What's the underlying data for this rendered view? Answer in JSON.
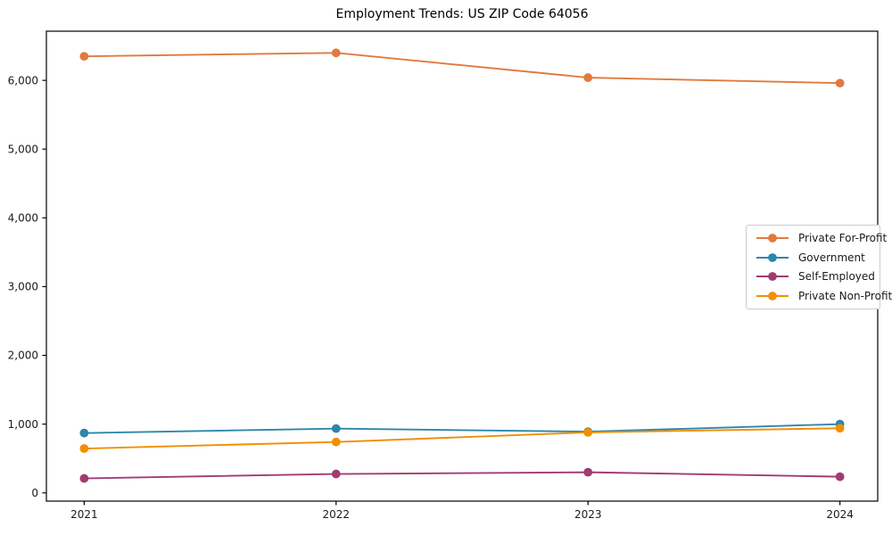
{
  "chart_data": {
    "type": "line",
    "title": "Employment Trends: US ZIP Code 64056",
    "xlabel": "",
    "ylabel": "",
    "x": [
      2021,
      2022,
      2023,
      2024
    ],
    "x_tick_labels": [
      "2021",
      "2022",
      "2023",
      "2024"
    ],
    "series": [
      {
        "name": "Private For-Profit",
        "color": "#E2793E",
        "values": [
          6350,
          6400,
          6040,
          5960
        ]
      },
      {
        "name": "Government",
        "color": "#2E86AB",
        "values": [
          870,
          935,
          890,
          1000
        ]
      },
      {
        "name": "Self-Employed",
        "color": "#A23B72",
        "values": [
          210,
          275,
          300,
          235
        ]
      },
      {
        "name": "Private Non-Profit",
        "color": "#F18F01",
        "values": [
          645,
          740,
          880,
          940
        ]
      }
    ],
    "yticks": {
      "values": [
        0,
        1000,
        2000,
        3000,
        4000,
        5000,
        6000
      ],
      "labels": [
        "0",
        "1,000",
        "2,000",
        "3,000",
        "4,000",
        "5,000",
        "6,000"
      ]
    },
    "ylim": [
      -120,
      6715
    ],
    "xlim": [
      2020.85,
      2024.15
    ],
    "grid": false,
    "legend_position": "center-right",
    "axis_color": "#000000",
    "tick_label_color": "#1a1a1a",
    "background_color": "#ffffff"
  }
}
